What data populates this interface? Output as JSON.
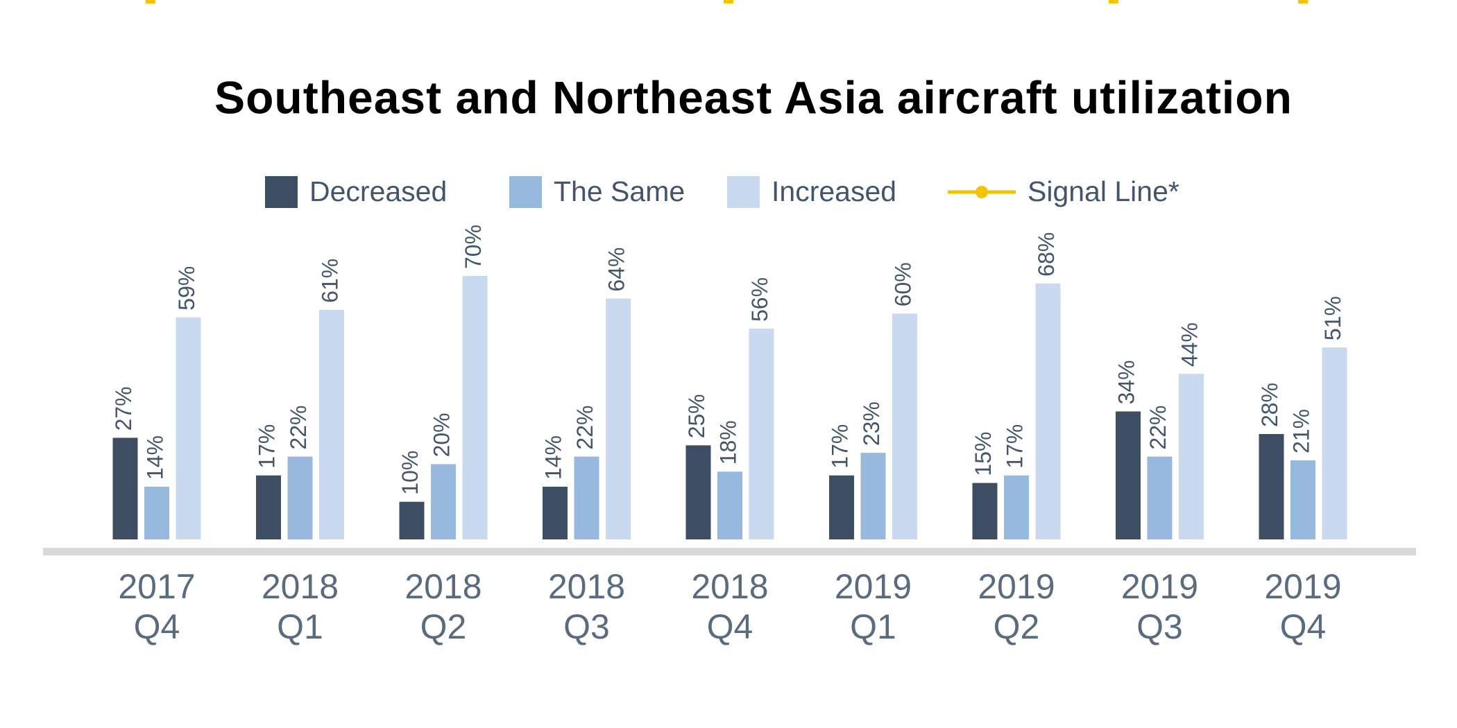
{
  "chart_data": {
    "type": "bar",
    "title": "Southeast and Northeast Asia aircraft utilization",
    "categories": [
      "2017 Q4",
      "2018 Q1",
      "2018 Q2",
      "2018 Q3",
      "2018 Q4",
      "2019 Q1",
      "2019 Q2",
      "2019 Q3",
      "2019 Q4"
    ],
    "series": [
      {
        "name": "Decreased",
        "color": "#3d4e63",
        "values": [
          27,
          17,
          10,
          14,
          25,
          17,
          15,
          34,
          28
        ],
        "value_labels": [
          "27%",
          "17%",
          "10%",
          "14%",
          "25%",
          "17%",
          "15%",
          "34%",
          "28%"
        ]
      },
      {
        "name": "The Same",
        "color": "#98b9de",
        "values": [
          14,
          22,
          20,
          22,
          18,
          23,
          17,
          22,
          21
        ],
        "value_labels": [
          "14%",
          "22%",
          "20%",
          "22%",
          "18%",
          "23%",
          "17%",
          "22%",
          "21%"
        ]
      },
      {
        "name": "Increased",
        "color": "#c9daf0",
        "values": [
          59,
          61,
          70,
          64,
          56,
          60,
          68,
          44,
          51
        ],
        "value_labels": [
          "59%",
          "61%",
          "70%",
          "64%",
          "56%",
          "60%",
          "68%",
          "44%",
          "51%"
        ]
      },
      {
        "name": "Signal Line*",
        "color": "#f5c400",
        "type": "line",
        "values": [
          null,
          null,
          null,
          null,
          null,
          null,
          null,
          null,
          null
        ]
      }
    ],
    "ylim": [
      0,
      70
    ]
  }
}
